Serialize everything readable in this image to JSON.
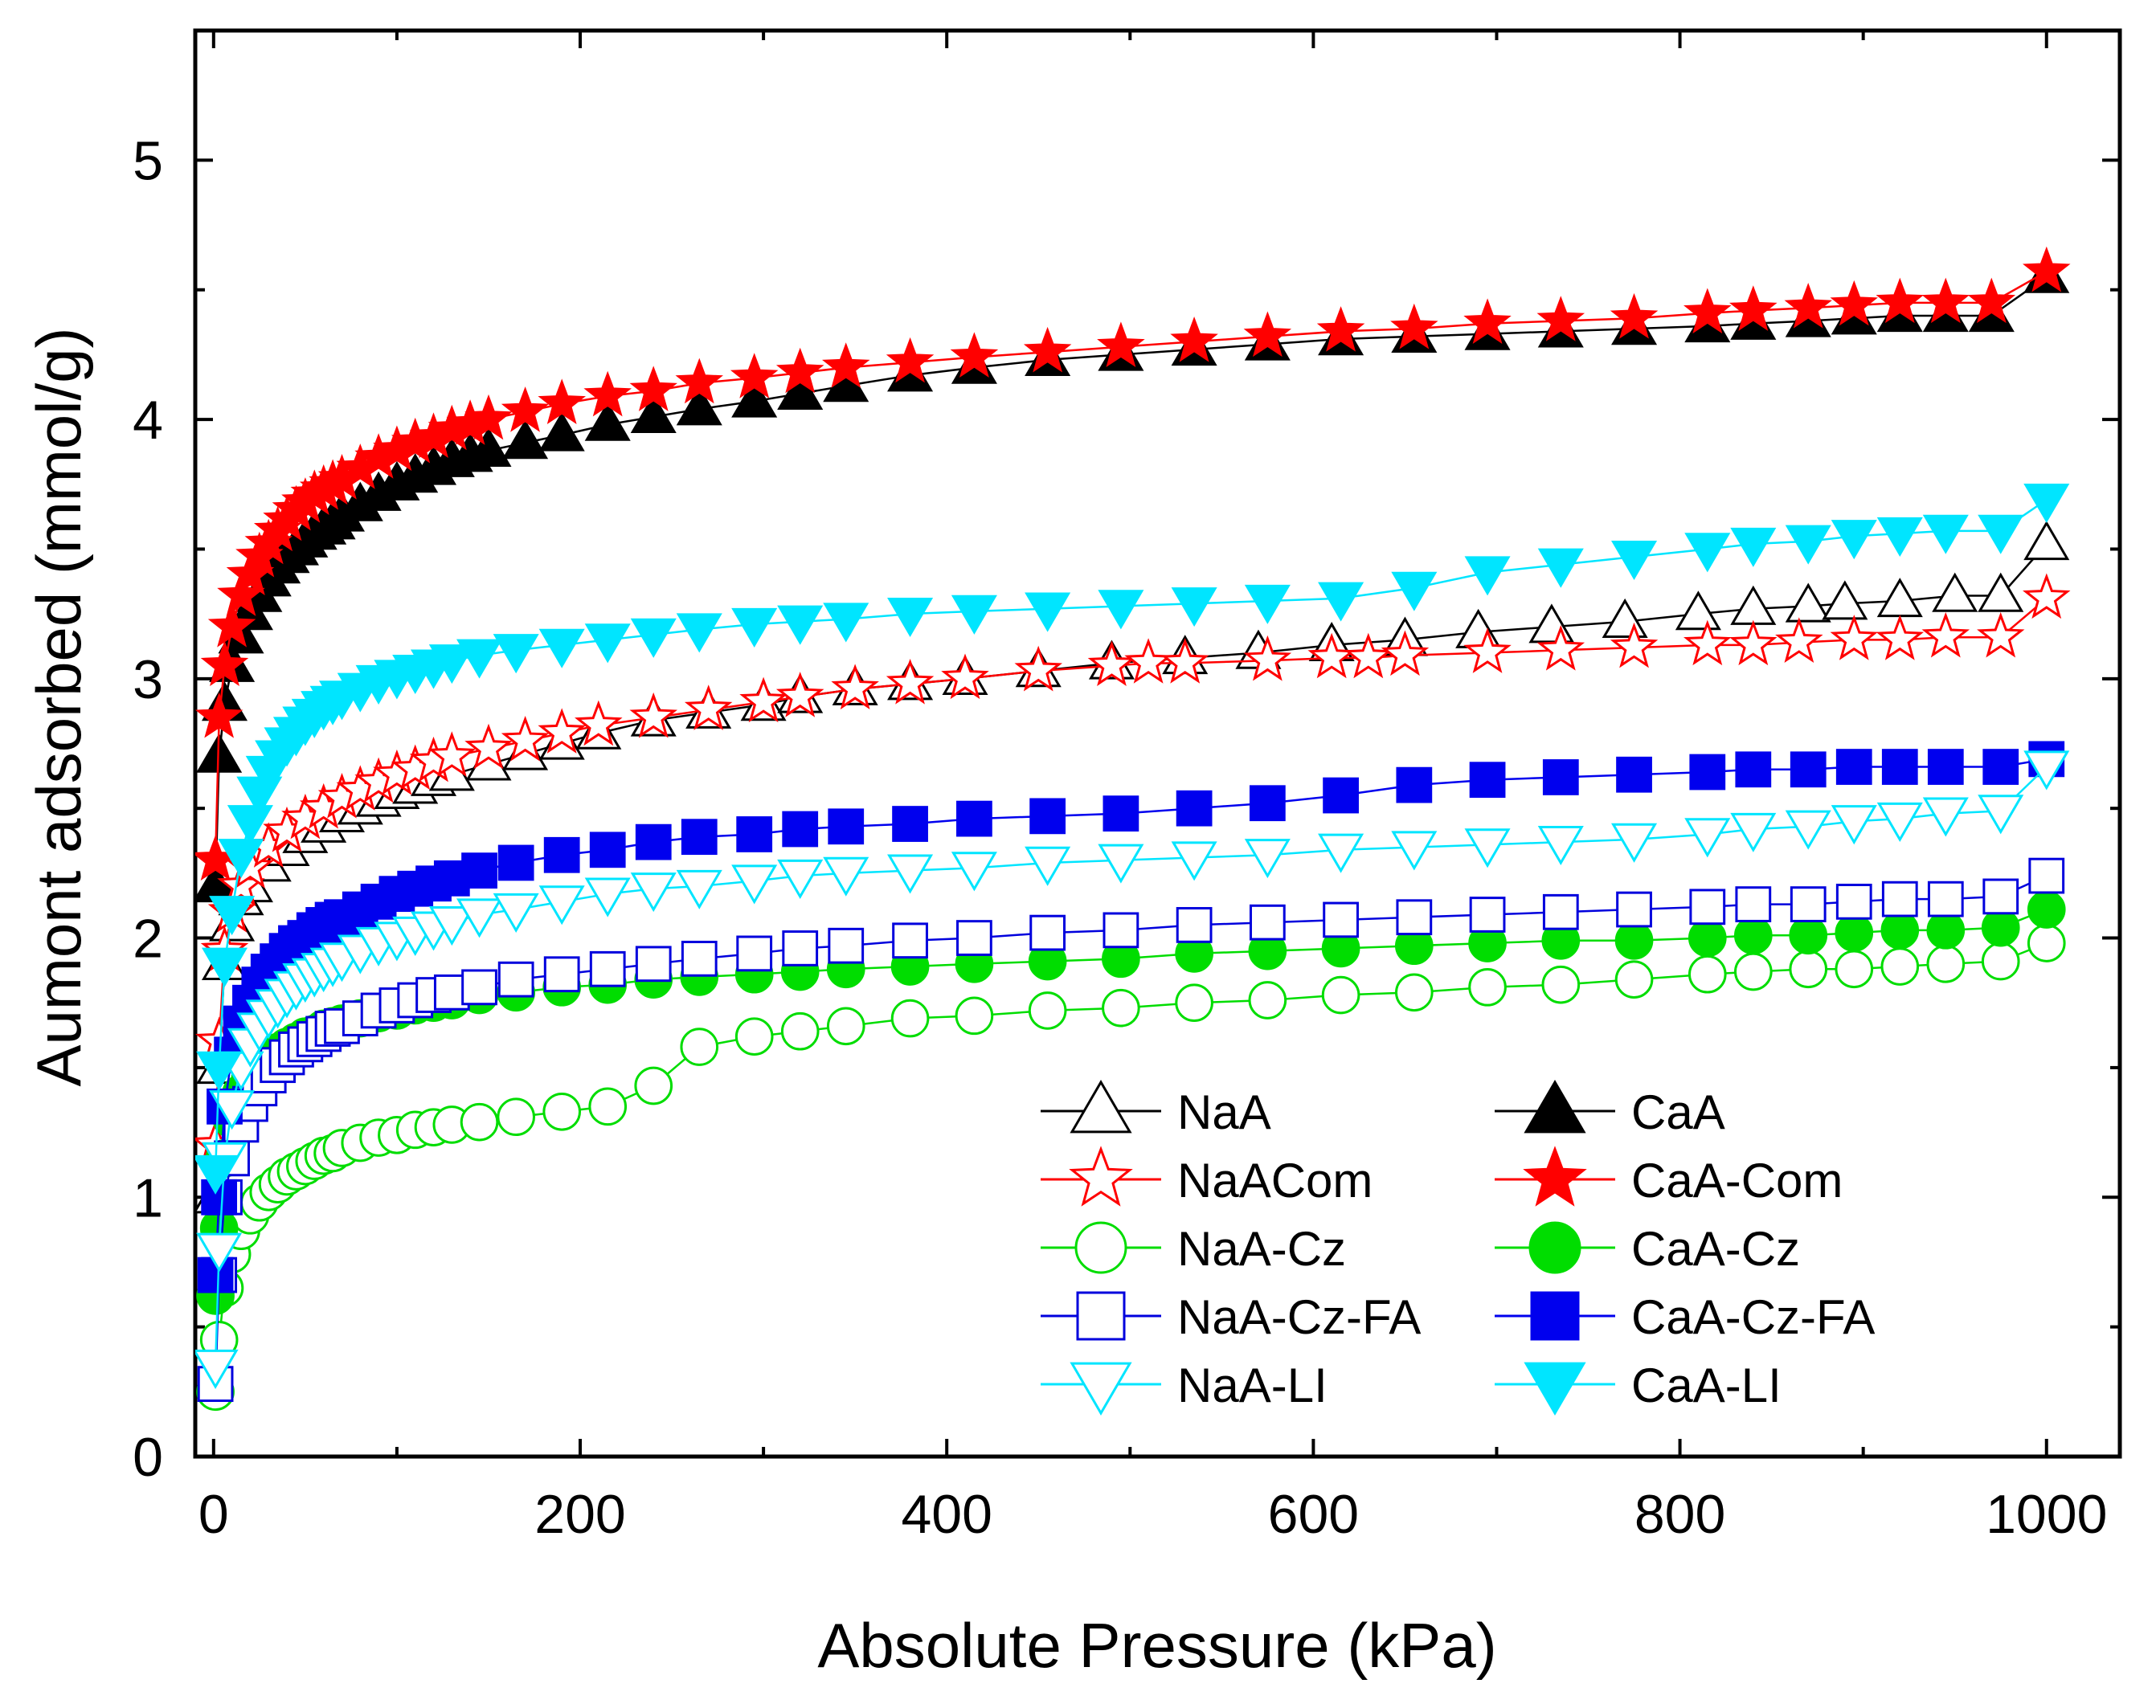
{
  "chart_data": {
    "type": "line",
    "xlabel": "Absolute Pressure (kPa)",
    "ylabel": "Aumont adsorbed (mmol/g)",
    "xlim": [
      -10,
      1040
    ],
    "ylim": [
      0,
      5.5
    ],
    "xticks": [
      0,
      200,
      400,
      600,
      800,
      1000
    ],
    "yticks": [
      0,
      1,
      2,
      3,
      4,
      5
    ],
    "xtick_labels": [
      "0",
      "200",
      "400",
      "600",
      "800",
      "1000"
    ],
    "ytick_labels": [
      "0",
      "1",
      "2",
      "3",
      "4",
      "5"
    ],
    "legend_position": "lower-right",
    "series": [
      {
        "name": "NaA",
        "color": "#000000",
        "marker": "triangle-up",
        "filled": false,
        "x": [
          1,
          3,
          6,
          10,
          15,
          20,
          30,
          40,
          50,
          60,
          70,
          80,
          90,
          100,
          110,
          120,
          130,
          150,
          170,
          190,
          210,
          240,
          270,
          300,
          320,
          350,
          380,
          410,
          450,
          490,
          530,
          570,
          610,
          650,
          690,
          730,
          770,
          810,
          840,
          870,
          890,
          920,
          950,
          975,
          1000
        ],
        "y": [
          1.0,
          1.5,
          1.9,
          2.05,
          2.15,
          2.2,
          2.28,
          2.34,
          2.39,
          2.43,
          2.47,
          2.5,
          2.53,
          2.56,
          2.58,
          2.61,
          2.63,
          2.67,
          2.71,
          2.75,
          2.79,
          2.84,
          2.87,
          2.9,
          2.93,
          2.96,
          2.98,
          3.0,
          3.03,
          3.06,
          3.08,
          3.1,
          3.13,
          3.15,
          3.18,
          3.2,
          3.22,
          3.25,
          3.27,
          3.28,
          3.29,
          3.3,
          3.32,
          3.32,
          3.52
        ]
      },
      {
        "name": "CaA",
        "color": "#000000",
        "marker": "triangle-up",
        "filled": true,
        "x": [
          1,
          3,
          6,
          10,
          15,
          20,
          25,
          30,
          35,
          40,
          45,
          50,
          55,
          60,
          65,
          70,
          80,
          90,
          100,
          110,
          120,
          130,
          140,
          150,
          170,
          190,
          215,
          240,
          265,
          295,
          320,
          345,
          380,
          415,
          455,
          495,
          535,
          575,
          615,
          655,
          695,
          735,
          775,
          815,
          840,
          870,
          895,
          920,
          945,
          970,
          1000
        ],
        "y": [
          2.2,
          2.7,
          2.9,
          3.05,
          3.16,
          3.25,
          3.32,
          3.38,
          3.43,
          3.47,
          3.5,
          3.53,
          3.56,
          3.58,
          3.6,
          3.63,
          3.67,
          3.71,
          3.75,
          3.78,
          3.81,
          3.84,
          3.86,
          3.88,
          3.91,
          3.94,
          3.98,
          4.01,
          4.04,
          4.07,
          4.1,
          4.13,
          4.17,
          4.2,
          4.23,
          4.25,
          4.27,
          4.29,
          4.31,
          4.32,
          4.33,
          4.34,
          4.35,
          4.36,
          4.37,
          4.38,
          4.39,
          4.4,
          4.4,
          4.4,
          4.55
        ]
      },
      {
        "name": "NaACom",
        "color": "#ff0000",
        "marker": "star",
        "filled": false,
        "x": [
          1,
          3,
          6,
          10,
          15,
          20,
          30,
          40,
          50,
          60,
          70,
          80,
          90,
          100,
          110,
          120,
          130,
          150,
          170,
          190,
          210,
          240,
          270,
          300,
          320,
          350,
          380,
          410,
          450,
          490,
          510,
          530,
          575,
          610,
          630,
          650,
          695,
          735,
          775,
          815,
          840,
          865,
          895,
          920,
          945,
          975,
          1000
        ],
        "y": [
          1.2,
          1.6,
          1.95,
          2.1,
          2.2,
          2.27,
          2.35,
          2.41,
          2.46,
          2.5,
          2.54,
          2.57,
          2.6,
          2.63,
          2.65,
          2.68,
          2.7,
          2.73,
          2.76,
          2.79,
          2.82,
          2.85,
          2.88,
          2.91,
          2.93,
          2.96,
          2.98,
          3.0,
          3.03,
          3.05,
          3.06,
          3.06,
          3.07,
          3.08,
          3.08,
          3.09,
          3.1,
          3.11,
          3.12,
          3.13,
          3.13,
          3.14,
          3.15,
          3.15,
          3.16,
          3.16,
          3.31
        ]
      },
      {
        "name": "CaA-Com",
        "color": "#ff0000",
        "marker": "star",
        "filled": true,
        "x": [
          1,
          3,
          6,
          10,
          15,
          20,
          25,
          30,
          35,
          40,
          45,
          50,
          55,
          60,
          65,
          70,
          80,
          90,
          100,
          110,
          120,
          130,
          140,
          150,
          170,
          190,
          215,
          240,
          265,
          295,
          320,
          345,
          380,
          415,
          455,
          495,
          535,
          575,
          615,
          655,
          695,
          735,
          775,
          815,
          840,
          870,
          895,
          920,
          945,
          970,
          1000
        ],
        "y": [
          2.3,
          2.85,
          3.05,
          3.2,
          3.32,
          3.4,
          3.47,
          3.52,
          3.57,
          3.61,
          3.65,
          3.68,
          3.71,
          3.73,
          3.75,
          3.77,
          3.81,
          3.85,
          3.88,
          3.91,
          3.93,
          3.96,
          3.98,
          4.0,
          4.03,
          4.06,
          4.09,
          4.11,
          4.14,
          4.16,
          4.18,
          4.2,
          4.22,
          4.24,
          4.26,
          4.28,
          4.3,
          4.32,
          4.34,
          4.35,
          4.37,
          4.38,
          4.39,
          4.41,
          4.42,
          4.43,
          4.44,
          4.45,
          4.45,
          4.45,
          4.57
        ]
      },
      {
        "name": "NaA-Cz",
        "color": "#00dd00",
        "marker": "circle",
        "filled": false,
        "x": [
          1,
          3,
          6,
          10,
          15,
          20,
          25,
          30,
          35,
          40,
          45,
          50,
          55,
          60,
          65,
          70,
          80,
          90,
          100,
          110,
          120,
          130,
          145,
          165,
          190,
          215,
          240,
          265,
          295,
          320,
          345,
          380,
          415,
          455,
          495,
          535,
          575,
          615,
          655,
          695,
          735,
          775,
          815,
          840,
          870,
          895,
          920,
          945,
          975,
          1000
        ],
        "y": [
          0.25,
          0.45,
          0.65,
          0.78,
          0.87,
          0.93,
          0.98,
          1.02,
          1.05,
          1.08,
          1.1,
          1.12,
          1.14,
          1.16,
          1.17,
          1.19,
          1.21,
          1.23,
          1.24,
          1.26,
          1.27,
          1.28,
          1.29,
          1.31,
          1.33,
          1.35,
          1.43,
          1.58,
          1.62,
          1.64,
          1.66,
          1.69,
          1.7,
          1.72,
          1.73,
          1.75,
          1.76,
          1.78,
          1.79,
          1.81,
          1.82,
          1.84,
          1.86,
          1.87,
          1.88,
          1.88,
          1.89,
          1.9,
          1.91,
          1.98
        ]
      },
      {
        "name": "CaA-Cz",
        "color": "#00dd00",
        "marker": "circle",
        "filled": true,
        "x": [
          1,
          3,
          6,
          10,
          15,
          20,
          25,
          30,
          35,
          40,
          45,
          50,
          55,
          60,
          65,
          70,
          80,
          90,
          100,
          110,
          120,
          130,
          145,
          165,
          190,
          215,
          240,
          265,
          295,
          320,
          345,
          380,
          415,
          455,
          495,
          535,
          575,
          615,
          655,
          695,
          735,
          775,
          815,
          840,
          870,
          895,
          920,
          945,
          975,
          1000
        ],
        "y": [
          0.62,
          0.88,
          1.15,
          1.3,
          1.4,
          1.46,
          1.5,
          1.53,
          1.56,
          1.58,
          1.6,
          1.62,
          1.63,
          1.65,
          1.66,
          1.67,
          1.69,
          1.71,
          1.72,
          1.74,
          1.75,
          1.76,
          1.78,
          1.79,
          1.81,
          1.82,
          1.84,
          1.85,
          1.86,
          1.87,
          1.88,
          1.89,
          1.9,
          1.91,
          1.92,
          1.94,
          1.95,
          1.96,
          1.97,
          1.98,
          1.99,
          1.99,
          2.0,
          2.01,
          2.01,
          2.02,
          2.03,
          2.03,
          2.04,
          2.11
        ]
      },
      {
        "name": "NaA-Cz-FA",
        "color": "#0000dd",
        "marker": "square",
        "filled": false,
        "x": [
          1,
          3,
          6,
          10,
          15,
          20,
          25,
          30,
          35,
          40,
          45,
          50,
          55,
          60,
          65,
          70,
          80,
          90,
          100,
          110,
          120,
          130,
          145,
          165,
          190,
          215,
          240,
          265,
          295,
          320,
          345,
          380,
          415,
          455,
          495,
          535,
          575,
          615,
          655,
          695,
          735,
          775,
          815,
          840,
          870,
          895,
          920,
          945,
          975,
          1000
        ],
        "y": [
          0.28,
          0.7,
          1.0,
          1.15,
          1.28,
          1.36,
          1.42,
          1.47,
          1.51,
          1.54,
          1.57,
          1.59,
          1.61,
          1.63,
          1.65,
          1.66,
          1.69,
          1.72,
          1.74,
          1.76,
          1.78,
          1.79,
          1.81,
          1.84,
          1.86,
          1.88,
          1.9,
          1.92,
          1.94,
          1.96,
          1.97,
          1.99,
          2.0,
          2.02,
          2.03,
          2.05,
          2.06,
          2.07,
          2.08,
          2.09,
          2.1,
          2.11,
          2.12,
          2.13,
          2.13,
          2.14,
          2.15,
          2.15,
          2.16,
          2.24
        ]
      },
      {
        "name": "CaA-Cz-FA",
        "color": "#0000ee",
        "marker": "square",
        "filled": true,
        "x": [
          1,
          3,
          6,
          10,
          15,
          20,
          25,
          30,
          35,
          40,
          45,
          50,
          55,
          60,
          65,
          70,
          80,
          90,
          100,
          110,
          120,
          130,
          145,
          165,
          190,
          215,
          240,
          265,
          295,
          320,
          345,
          380,
          415,
          455,
          495,
          535,
          575,
          615,
          655,
          695,
          735,
          775,
          815,
          840,
          870,
          895,
          920,
          945,
          975,
          1000
        ],
        "y": [
          0.7,
          1.0,
          1.35,
          1.55,
          1.67,
          1.75,
          1.82,
          1.87,
          1.91,
          1.95,
          1.98,
          2.0,
          2.03,
          2.05,
          2.07,
          2.08,
          2.11,
          2.14,
          2.17,
          2.19,
          2.21,
          2.23,
          2.26,
          2.29,
          2.32,
          2.34,
          2.37,
          2.39,
          2.4,
          2.42,
          2.43,
          2.44,
          2.46,
          2.47,
          2.48,
          2.5,
          2.52,
          2.55,
          2.59,
          2.61,
          2.62,
          2.63,
          2.64,
          2.65,
          2.65,
          2.66,
          2.66,
          2.66,
          2.66,
          2.69
        ]
      },
      {
        "name": "NaA-LI",
        "color": "#00e5ff",
        "marker": "triangle-down",
        "filled": false,
        "x": [
          1,
          3,
          6,
          10,
          15,
          20,
          25,
          30,
          35,
          40,
          45,
          50,
          55,
          60,
          65,
          70,
          80,
          90,
          100,
          110,
          120,
          130,
          145,
          165,
          190,
          215,
          240,
          265,
          295,
          320,
          345,
          380,
          415,
          455,
          495,
          535,
          575,
          615,
          655,
          695,
          735,
          775,
          815,
          840,
          870,
          895,
          920,
          945,
          975,
          1000
        ],
        "y": [
          0.35,
          0.8,
          1.15,
          1.35,
          1.5,
          1.59,
          1.65,
          1.7,
          1.74,
          1.78,
          1.81,
          1.84,
          1.86,
          1.88,
          1.9,
          1.92,
          1.95,
          1.98,
          2.0,
          2.02,
          2.04,
          2.06,
          2.09,
          2.11,
          2.14,
          2.17,
          2.19,
          2.2,
          2.22,
          2.24,
          2.25,
          2.26,
          2.27,
          2.29,
          2.3,
          2.31,
          2.32,
          2.34,
          2.35,
          2.36,
          2.37,
          2.38,
          2.4,
          2.42,
          2.43,
          2.45,
          2.46,
          2.48,
          2.49,
          2.66
        ]
      },
      {
        "name": "CaA-LI",
        "color": "#00e5ff",
        "marker": "triangle-down",
        "filled": true,
        "x": [
          1,
          3,
          6,
          10,
          15,
          20,
          25,
          30,
          35,
          40,
          45,
          50,
          55,
          60,
          65,
          70,
          80,
          90,
          100,
          110,
          120,
          130,
          145,
          165,
          190,
          215,
          240,
          265,
          295,
          320,
          345,
          380,
          415,
          455,
          495,
          535,
          575,
          615,
          655,
          695,
          735,
          775,
          815,
          840,
          870,
          895,
          920,
          945,
          975,
          1000
        ],
        "y": [
          1.1,
          1.5,
          1.9,
          2.1,
          2.32,
          2.45,
          2.56,
          2.64,
          2.7,
          2.75,
          2.79,
          2.83,
          2.86,
          2.89,
          2.91,
          2.93,
          2.96,
          2.99,
          3.01,
          3.03,
          3.05,
          3.07,
          3.09,
          3.11,
          3.13,
          3.15,
          3.17,
          3.19,
          3.21,
          3.22,
          3.23,
          3.25,
          3.26,
          3.27,
          3.28,
          3.29,
          3.3,
          3.31,
          3.35,
          3.41,
          3.44,
          3.47,
          3.5,
          3.52,
          3.53,
          3.55,
          3.56,
          3.57,
          3.57,
          3.69
        ]
      }
    ]
  }
}
